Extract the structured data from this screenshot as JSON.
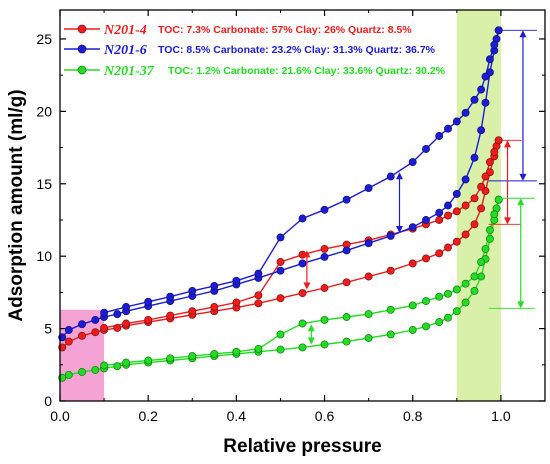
{
  "chart_data": {
    "type": "line",
    "xlabel": "Relative pressure",
    "ylabel": "Adsorption amount (ml/g)",
    "xlim": [
      0,
      1.1
    ],
    "ylim": [
      0,
      27
    ],
    "x_ticks": [
      "0.0",
      "0.2",
      "0.4",
      "0.6",
      "0.8",
      "1.0"
    ],
    "y_ticks": [
      "0",
      "5",
      "10",
      "15",
      "20",
      "25"
    ],
    "legend_position": "top-left",
    "highlight_regions": [
      {
        "x": [
          0,
          0.1
        ],
        "y": [
          0,
          6.3
        ],
        "color": "#f4a3d4"
      },
      {
        "x": [
          0.9,
          1.0
        ],
        "y": [
          0,
          27
        ],
        "color": "#d8f0a8"
      }
    ],
    "series": [
      {
        "name": "N201-4",
        "description": "TOC: 7.3%  Carbonate: 57% Clay: 26%  Quartz: 8.5%",
        "color": "#ee1c1c",
        "adsorption": [
          [
            0.005,
            3.7
          ],
          [
            0.02,
            4.1
          ],
          [
            0.05,
            4.5
          ],
          [
            0.08,
            4.75
          ],
          [
            0.1,
            4.9
          ],
          [
            0.13,
            5.05
          ],
          [
            0.15,
            5.2
          ],
          [
            0.2,
            5.45
          ],
          [
            0.25,
            5.7
          ],
          [
            0.3,
            5.95
          ],
          [
            0.35,
            6.2
          ],
          [
            0.4,
            6.45
          ],
          [
            0.45,
            6.75
          ],
          [
            0.5,
            7.1
          ],
          [
            0.55,
            7.45
          ],
          [
            0.6,
            7.8
          ],
          [
            0.65,
            8.2
          ],
          [
            0.7,
            8.6
          ],
          [
            0.75,
            9.0
          ],
          [
            0.8,
            9.5
          ],
          [
            0.83,
            9.85
          ],
          [
            0.86,
            10.2
          ],
          [
            0.88,
            10.6
          ],
          [
            0.9,
            11.0
          ],
          [
            0.92,
            11.5
          ],
          [
            0.94,
            12.2
          ],
          [
            0.955,
            13.3
          ],
          [
            0.965,
            14.5
          ],
          [
            0.975,
            15.8
          ],
          [
            0.985,
            16.9
          ],
          [
            0.99,
            17.6
          ],
          [
            0.995,
            18.0
          ]
        ],
        "desorption": [
          [
            0.995,
            18.0
          ],
          [
            0.985,
            17.2
          ],
          [
            0.975,
            16.5
          ],
          [
            0.965,
            15.5
          ],
          [
            0.955,
            14.8
          ],
          [
            0.94,
            14.0
          ],
          [
            0.92,
            13.5
          ],
          [
            0.9,
            13.1
          ],
          [
            0.88,
            12.8
          ],
          [
            0.86,
            12.5
          ],
          [
            0.83,
            12.2
          ],
          [
            0.8,
            11.9
          ],
          [
            0.75,
            11.5
          ],
          [
            0.7,
            11.1
          ],
          [
            0.65,
            10.8
          ],
          [
            0.6,
            10.5
          ],
          [
            0.55,
            10.1
          ],
          [
            0.5,
            9.6
          ],
          [
            0.45,
            7.3
          ],
          [
            0.4,
            6.8
          ],
          [
            0.35,
            6.5
          ],
          [
            0.3,
            6.2
          ],
          [
            0.25,
            5.9
          ],
          [
            0.2,
            5.6
          ],
          [
            0.15,
            5.35
          ],
          [
            0.1,
            5.05
          ]
        ]
      },
      {
        "name": "N201-6",
        "description": "TOC: 8.5%  Carbonate: 23.2% Clay: 31.3%  Quartz: 36.7%",
        "color": "#1c1cd6",
        "adsorption": [
          [
            0.005,
            4.4
          ],
          [
            0.02,
            4.9
          ],
          [
            0.05,
            5.3
          ],
          [
            0.08,
            5.6
          ],
          [
            0.1,
            5.8
          ],
          [
            0.13,
            6.0
          ],
          [
            0.15,
            6.2
          ],
          [
            0.2,
            6.55
          ],
          [
            0.25,
            6.9
          ],
          [
            0.3,
            7.25
          ],
          [
            0.35,
            7.6
          ],
          [
            0.4,
            8.05
          ],
          [
            0.45,
            8.5
          ],
          [
            0.5,
            9.0
          ],
          [
            0.55,
            9.5
          ],
          [
            0.6,
            9.95
          ],
          [
            0.65,
            10.4
          ],
          [
            0.7,
            10.9
          ],
          [
            0.75,
            11.4
          ],
          [
            0.8,
            12.0
          ],
          [
            0.83,
            12.5
          ],
          [
            0.86,
            13.0
          ],
          [
            0.88,
            13.5
          ],
          [
            0.9,
            14.3
          ],
          [
            0.92,
            15.3
          ],
          [
            0.94,
            16.8
          ],
          [
            0.955,
            18.7
          ],
          [
            0.965,
            20.6
          ],
          [
            0.975,
            22.7
          ],
          [
            0.985,
            24.2
          ],
          [
            0.99,
            25.0
          ],
          [
            0.995,
            25.6
          ]
        ],
        "desorption": [
          [
            0.995,
            25.6
          ],
          [
            0.985,
            24.6
          ],
          [
            0.975,
            23.6
          ],
          [
            0.965,
            22.4
          ],
          [
            0.955,
            21.5
          ],
          [
            0.94,
            20.8
          ],
          [
            0.92,
            19.9
          ],
          [
            0.9,
            19.3
          ],
          [
            0.88,
            18.8
          ],
          [
            0.86,
            18.3
          ],
          [
            0.83,
            17.4
          ],
          [
            0.8,
            16.5
          ],
          [
            0.75,
            15.5
          ],
          [
            0.7,
            14.7
          ],
          [
            0.65,
            13.9
          ],
          [
            0.6,
            13.2
          ],
          [
            0.55,
            12.6
          ],
          [
            0.5,
            11.3
          ],
          [
            0.45,
            8.8
          ],
          [
            0.4,
            8.3
          ],
          [
            0.35,
            7.95
          ],
          [
            0.3,
            7.6
          ],
          [
            0.25,
            7.2
          ],
          [
            0.2,
            6.85
          ],
          [
            0.15,
            6.5
          ],
          [
            0.1,
            6.1
          ]
        ]
      },
      {
        "name": "N201-37",
        "description": "TOC: 1.2%  Carbonate: 21.6% Clay: 33.6%  Quartz: 30.2%",
        "color": "#22dd22",
        "adsorption": [
          [
            0.005,
            1.6
          ],
          [
            0.02,
            1.8
          ],
          [
            0.05,
            2.0
          ],
          [
            0.08,
            2.15
          ],
          [
            0.1,
            2.25
          ],
          [
            0.13,
            2.4
          ],
          [
            0.15,
            2.5
          ],
          [
            0.2,
            2.65
          ],
          [
            0.25,
            2.8
          ],
          [
            0.3,
            2.95
          ],
          [
            0.35,
            3.1
          ],
          [
            0.4,
            3.25
          ],
          [
            0.45,
            3.4
          ],
          [
            0.5,
            3.55
          ],
          [
            0.55,
            3.7
          ],
          [
            0.6,
            3.9
          ],
          [
            0.65,
            4.1
          ],
          [
            0.7,
            4.35
          ],
          [
            0.75,
            4.6
          ],
          [
            0.8,
            4.9
          ],
          [
            0.83,
            5.15
          ],
          [
            0.86,
            5.45
          ],
          [
            0.88,
            5.75
          ],
          [
            0.9,
            6.2
          ],
          [
            0.92,
            6.8
          ],
          [
            0.94,
            7.6
          ],
          [
            0.955,
            8.6
          ],
          [
            0.965,
            9.8
          ],
          [
            0.975,
            11.2
          ],
          [
            0.985,
            12.5
          ],
          [
            0.99,
            13.3
          ],
          [
            0.995,
            13.9
          ]
        ],
        "desorption": [
          [
            0.995,
            13.9
          ],
          [
            0.985,
            12.9
          ],
          [
            0.975,
            11.8
          ],
          [
            0.965,
            10.5
          ],
          [
            0.955,
            9.6
          ],
          [
            0.94,
            8.6
          ],
          [
            0.92,
            8.1
          ],
          [
            0.9,
            7.7
          ],
          [
            0.88,
            7.4
          ],
          [
            0.86,
            7.2
          ],
          [
            0.83,
            6.9
          ],
          [
            0.8,
            6.6
          ],
          [
            0.75,
            6.3
          ],
          [
            0.7,
            6.0
          ],
          [
            0.65,
            5.8
          ],
          [
            0.6,
            5.6
          ],
          [
            0.55,
            5.35
          ],
          [
            0.5,
            4.6
          ],
          [
            0.45,
            3.6
          ],
          [
            0.4,
            3.4
          ],
          [
            0.35,
            3.25
          ],
          [
            0.3,
            3.1
          ],
          [
            0.25,
            2.95
          ],
          [
            0.2,
            2.8
          ],
          [
            0.15,
            2.65
          ],
          [
            0.1,
            2.45
          ]
        ]
      }
    ],
    "hysteresis_arrows": [
      {
        "series": "N201-4",
        "x": 0.56,
        "y": [
          7.7,
          10.4
        ]
      },
      {
        "series": "N201-6",
        "x": 0.77,
        "y": [
          11.6,
          15.8
        ]
      },
      {
        "series": "N201-37",
        "x": 0.57,
        "y": [
          3.9,
          5.3
        ]
      }
    ],
    "range_arrows": [
      {
        "series": "N201-6",
        "x": 1.05,
        "y": [
          15.2,
          25.6
        ],
        "y_from": 0.995
      },
      {
        "series": "N201-4",
        "x": 1.015,
        "y": [
          12.2,
          18.0
        ],
        "y_from": 0.995
      },
      {
        "series": "N201-37",
        "x": 1.045,
        "y": [
          6.4,
          14.0
        ],
        "y_from": 0.995
      }
    ]
  }
}
